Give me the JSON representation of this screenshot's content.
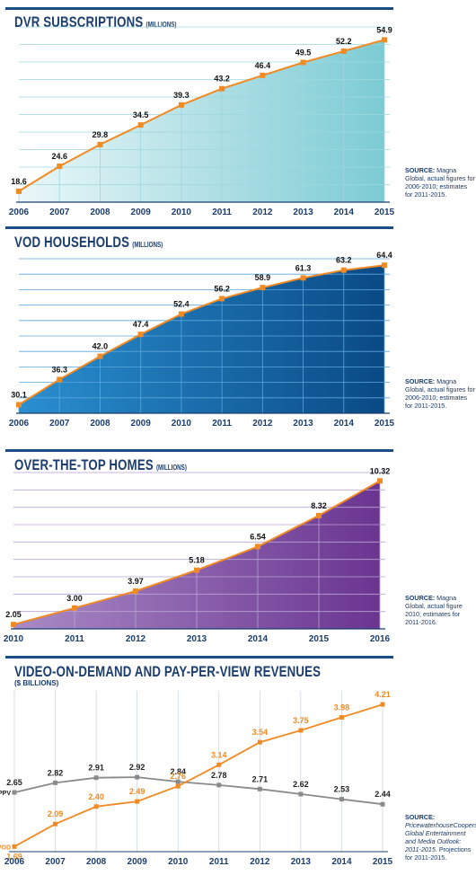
{
  "charts": [
    {
      "title": "DVR SUBSCRIPTIONS",
      "unit": "(MILLIONS)",
      "source_label": "SOURCE:",
      "source_text": "Magna Global, actual figures for 2006-2010; estimates for 2011-2015."
    },
    {
      "title": "VOD HOUSEHOLDS",
      "unit": "(MILLIONS)",
      "source_label": "SOURCE:",
      "source_text": "Magna Global, actual figures for 2006-2010; estimates for 2011-2015."
    },
    {
      "title": "OVER-THE-TOP HOMES",
      "unit": "(MILLIONS)",
      "source_label": "SOURCE:",
      "source_text": "Magna Global, actual figure 2010; estimates for 2011-2016."
    },
    {
      "title": "VIDEO-ON-DEMAND AND PAY-PER-VIEW REVENUES",
      "unit": "($ BILLIONS)",
      "source_label": "SOURCE:",
      "source_text_italic": "PricewaterhouseCoopers, Global Entertainment and Media Outlook: 2011-2015.",
      "source_text": "Projections for 2011-2015."
    }
  ],
  "chart_data": [
    {
      "type": "area",
      "title": "DVR SUBSCRIPTIONS (MILLIONS)",
      "categories": [
        "2006",
        "2007",
        "2008",
        "2009",
        "2010",
        "2011",
        "2012",
        "2013",
        "2014",
        "2015"
      ],
      "values": [
        18.6,
        24.6,
        29.8,
        34.5,
        39.3,
        43.2,
        46.4,
        49.5,
        52.2,
        54.9
      ],
      "labels": [
        "18.6",
        "24.6",
        "29.8",
        "34.5",
        "39.3",
        "43.2",
        "46.4",
        "49.5",
        "52.2",
        "54.9"
      ],
      "ylim": [
        16,
        58
      ],
      "grid": true,
      "colors": {
        "fill_start": "#eaf7f8",
        "fill_end": "#7ccbd4",
        "line": "#f08a24",
        "grid": "#9ed7de"
      }
    },
    {
      "type": "area",
      "title": "VOD HOUSEHOLDS (MILLIONS)",
      "categories": [
        "2006",
        "2007",
        "2008",
        "2009",
        "2010",
        "2011",
        "2012",
        "2013",
        "2014",
        "2015"
      ],
      "values": [
        30.1,
        36.3,
        42.0,
        47.4,
        52.4,
        56.2,
        58.9,
        61.3,
        63.2,
        64.4
      ],
      "labels": [
        "30.1",
        "36.3",
        "42.0",
        "47.4",
        "52.4",
        "56.2",
        "58.9",
        "61.3",
        "63.2",
        "64.4"
      ],
      "ylim": [
        28,
        66
      ],
      "grid": true,
      "colors": {
        "fill_start": "#2a8fd0",
        "fill_end": "#0a4a86",
        "line": "#f08a24",
        "grid": "#5aa6dc"
      }
    },
    {
      "type": "area",
      "title": "OVER-THE-TOP HOMES (MILLIONS)",
      "categories": [
        "2010",
        "2011",
        "2012",
        "2013",
        "2014",
        "2015",
        "2016"
      ],
      "values": [
        2.05,
        3.0,
        3.97,
        5.18,
        6.54,
        8.32,
        10.32
      ],
      "labels": [
        "2.05",
        "3.00",
        "3.97",
        "5.18",
        "6.54",
        "8.32",
        "10.32"
      ],
      "ylim": [
        1.8,
        10.8
      ],
      "grid": true,
      "colors": {
        "fill_start": "#a98ac6",
        "fill_end": "#6a3591",
        "line": "#f08a24",
        "grid": "#b9a3d2"
      }
    },
    {
      "type": "line",
      "title": "VIDEO-ON-DEMAND AND PAY-PER-VIEW REVENUES ($ BILLIONS)",
      "categories": [
        "2006",
        "2007",
        "2008",
        "2009",
        "2010",
        "2011",
        "2012",
        "2013",
        "2014",
        "2015"
      ],
      "series": [
        {
          "name": "PPV",
          "values": [
            2.65,
            2.82,
            2.91,
            2.92,
            2.84,
            2.78,
            2.71,
            2.62,
            2.53,
            2.44
          ],
          "labels": [
            "2.65",
            "2.82",
            "2.91",
            "2.92",
            "2.84",
            "2.78",
            "2.71",
            "2.62",
            "2.53",
            "2.44"
          ],
          "color": "#8a8a8a"
        },
        {
          "name": "VOD",
          "values": [
            1.69,
            2.09,
            2.4,
            2.49,
            2.76,
            3.14,
            3.54,
            3.75,
            3.98,
            4.21
          ],
          "labels": [
            "1.69",
            "2.09",
            "2.40",
            "2.49",
            "2.76",
            "3.14",
            "3.54",
            "3.75",
            "3.98",
            "4.21"
          ],
          "color": "#f08a24"
        }
      ],
      "ylim": [
        1.6,
        4.45
      ],
      "grid": true,
      "colors": {
        "grid": "#c8d2dc"
      }
    }
  ]
}
